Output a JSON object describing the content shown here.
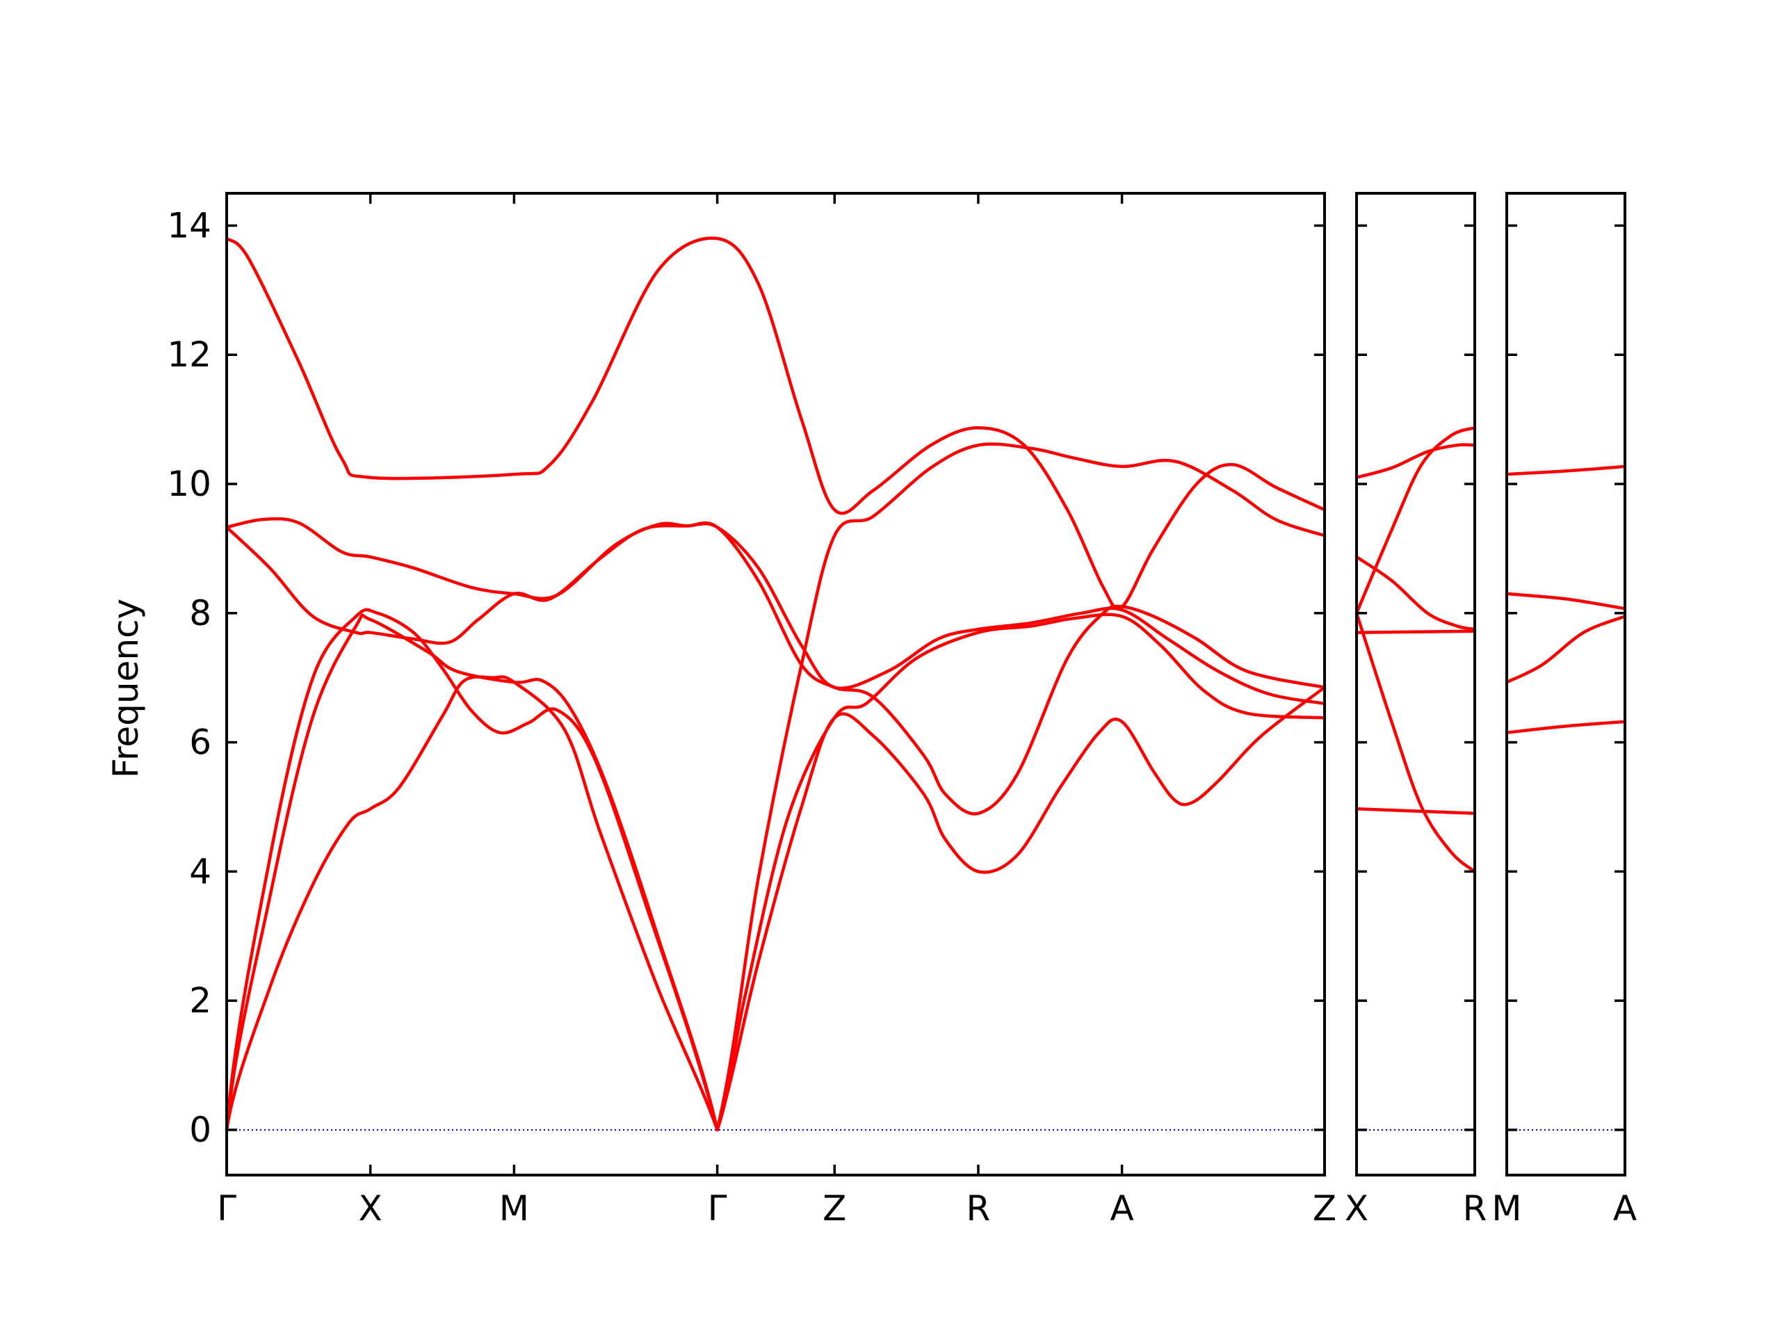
{
  "chart_data": {
    "type": "line",
    "title": "",
    "xlabel": "",
    "ylabel": "Frequency",
    "ylim": [
      -0.7,
      14.5
    ],
    "yticks": [
      0,
      2,
      4,
      6,
      8,
      10,
      12,
      14
    ],
    "grid": false,
    "legend": "none",
    "colors": {
      "bands": "#ff0000",
      "zero_line": "#0000ff",
      "frame": "#000000"
    },
    "segments": [
      {
        "x_labels": [
          "Γ",
          "X",
          "M",
          "Γ",
          "Z",
          "R",
          "A",
          "Z"
        ],
        "x_positions": [
          0,
          1,
          2,
          3.414,
          4.23,
          5.23,
          6.23,
          7.64
        ],
        "bands": [
          [
            [
              0,
              0
            ],
            [
              0.3,
              2.2
            ],
            [
              0.6,
              3.8
            ],
            [
              0.85,
              4.75
            ],
            [
              1,
              4.97
            ],
            [
              1.2,
              5.3
            ],
            [
              1.5,
              6.4
            ],
            [
              1.65,
              6.95
            ],
            [
              1.85,
              7.0
            ],
            [
              2,
              6.93
            ],
            [
              2.35,
              6.2
            ],
            [
              2.6,
              4.6
            ],
            [
              3.0,
              2.2
            ],
            [
              3.414,
              0
            ],
            [
              3.7,
              2.6
            ],
            [
              4.0,
              5.0
            ],
            [
              4.23,
              6.38
            ],
            [
              4.5,
              6.1
            ],
            [
              4.85,
              5.2
            ],
            [
              5.0,
              4.5
            ],
            [
              5.23,
              4.0
            ],
            [
              5.5,
              4.25
            ],
            [
              5.8,
              5.3
            ],
            [
              6.07,
              6.15
            ],
            [
              6.23,
              6.32
            ],
            [
              6.45,
              5.55
            ],
            [
              6.6,
              5.1
            ],
            [
              6.72,
              5.07
            ],
            [
              6.9,
              5.4
            ],
            [
              7.2,
              6.1
            ],
            [
              7.64,
              6.85
            ]
          ],
          [
            [
              0,
              0
            ],
            [
              0.3,
              3.6
            ],
            [
              0.6,
              6.4
            ],
            [
              0.9,
              7.8
            ],
            [
              1,
              7.9
            ],
            [
              1.4,
              7.4
            ],
            [
              1.6,
              7.1
            ],
            [
              2,
              6.93
            ],
            [
              2.2,
              6.95
            ],
            [
              2.4,
              6.5
            ],
            [
              2.65,
              5.3
            ],
            [
              3.0,
              3.0
            ],
            [
              3.414,
              0
            ],
            [
              3.6,
              2.0
            ],
            [
              3.9,
              4.8
            ],
            [
              4.23,
              6.38
            ],
            [
              4.45,
              6.6
            ],
            [
              4.8,
              7.3
            ],
            [
              5.23,
              7.7
            ],
            [
              5.6,
              7.8
            ],
            [
              5.9,
              7.92
            ],
            [
              6.23,
              7.95
            ],
            [
              6.5,
              7.5
            ],
            [
              6.8,
              6.8
            ],
            [
              7.1,
              6.45
            ],
            [
              7.64,
              6.38
            ]
          ],
          [
            [
              0,
              0
            ],
            [
              0.3,
              4.2
            ],
            [
              0.6,
              7.0
            ],
            [
              0.9,
              7.95
            ],
            [
              1.05,
              8.0
            ],
            [
              1.3,
              7.7
            ],
            [
              1.5,
              7.15
            ],
            [
              1.7,
              6.5
            ],
            [
              1.9,
              6.15
            ],
            [
              2.1,
              6.3
            ],
            [
              2.3,
              6.5
            ],
            [
              2.55,
              5.8
            ],
            [
              2.9,
              3.6
            ],
            [
              3.414,
              0
            ],
            [
              3.7,
              3.9
            ],
            [
              4.0,
              7.2
            ],
            [
              4.23,
              9.2
            ],
            [
              4.5,
              9.5
            ],
            [
              4.9,
              10.25
            ],
            [
              5.23,
              10.6
            ],
            [
              5.6,
              10.55
            ],
            [
              5.9,
              10.4
            ],
            [
              6.23,
              10.27
            ],
            [
              6.6,
              10.35
            ],
            [
              7.0,
              9.9
            ],
            [
              7.3,
              9.45
            ],
            [
              7.64,
              9.2
            ]
          ],
          [
            [
              0,
              9.33
            ],
            [
              0.3,
              8.7
            ],
            [
              0.6,
              7.95
            ],
            [
              0.9,
              7.7
            ],
            [
              1,
              7.7
            ],
            [
              1.3,
              7.6
            ],
            [
              1.55,
              7.55
            ],
            [
              1.75,
              7.9
            ],
            [
              2,
              8.3
            ],
            [
              2.25,
              8.22
            ],
            [
              2.6,
              8.85
            ],
            [
              2.9,
              9.3
            ],
            [
              3.2,
              9.35
            ],
            [
              3.414,
              9.33
            ],
            [
              3.7,
              8.7
            ],
            [
              4.0,
              7.5
            ],
            [
              4.23,
              6.85
            ],
            [
              4.6,
              7.1
            ],
            [
              4.95,
              7.6
            ],
            [
              5.23,
              7.75
            ],
            [
              5.6,
              7.85
            ],
            [
              5.95,
              8.0
            ],
            [
              6.23,
              8.05
            ],
            [
              6.55,
              7.6
            ],
            [
              6.9,
              7.1
            ],
            [
              7.25,
              6.75
            ],
            [
              7.64,
              6.6
            ]
          ],
          [
            [
              0,
              9.33
            ],
            [
              0.25,
              9.45
            ],
            [
              0.5,
              9.4
            ],
            [
              0.8,
              8.95
            ],
            [
              1,
              8.87
            ],
            [
              1.3,
              8.7
            ],
            [
              1.7,
              8.4
            ],
            [
              2,
              8.3
            ],
            [
              2.3,
              8.28
            ],
            [
              2.7,
              9.05
            ],
            [
              3.0,
              9.37
            ],
            [
              3.2,
              9.35
            ],
            [
              3.414,
              9.33
            ],
            [
              3.7,
              8.5
            ],
            [
              4.0,
              7.2
            ],
            [
              4.23,
              6.85
            ],
            [
              4.5,
              6.7
            ],
            [
              4.85,
              5.8
            ],
            [
              5.0,
              5.2
            ],
            [
              5.23,
              4.9
            ],
            [
              5.5,
              5.5
            ],
            [
              5.85,
              7.3
            ],
            [
              6.1,
              8.0
            ],
            [
              6.23,
              8.1
            ],
            [
              6.45,
              7.95
            ],
            [
              6.75,
              7.6
            ],
            [
              7.1,
              7.1
            ],
            [
              7.64,
              6.85
            ]
          ],
          [
            [
              0,
              13.8
            ],
            [
              0.15,
              13.5
            ],
            [
              0.5,
              11.9
            ],
            [
              0.8,
              10.4
            ],
            [
              1,
              10.1
            ],
            [
              2,
              10.15
            ],
            [
              2.25,
              10.3
            ],
            [
              2.55,
              11.3
            ],
            [
              3.0,
              13.3
            ],
            [
              3.414,
              13.8
            ],
            [
              3.7,
              13.1
            ],
            [
              4.0,
              11.0
            ],
            [
              4.23,
              9.6
            ],
            [
              4.5,
              9.9
            ],
            [
              4.9,
              10.6
            ],
            [
              5.23,
              10.87
            ],
            [
              5.55,
              10.6
            ],
            [
              5.85,
              9.6
            ],
            [
              6.1,
              8.4
            ],
            [
              6.23,
              8.1
            ],
            [
              6.45,
              9.0
            ],
            [
              6.75,
              10.0
            ],
            [
              7.0,
              10.3
            ],
            [
              7.3,
              9.95
            ],
            [
              7.64,
              9.6
            ]
          ]
        ]
      },
      {
        "x_labels": [
          "X",
          "R"
        ],
        "x_positions": [
          0,
          1
        ],
        "bands": [
          [
            [
              0,
              4.97
            ],
            [
              1,
              4.9
            ]
          ],
          [
            [
              0,
              8.0
            ],
            [
              0.3,
              6.3
            ],
            [
              0.55,
              5.0
            ],
            [
              0.8,
              4.3
            ],
            [
              1,
              4.0
            ]
          ],
          [
            [
              0,
              7.7
            ],
            [
              1,
              7.72
            ]
          ],
          [
            [
              0,
              8.87
            ],
            [
              0.3,
              8.5
            ],
            [
              0.6,
              8.0
            ],
            [
              0.85,
              7.8
            ],
            [
              1,
              7.75
            ]
          ],
          [
            [
              0,
              8.0
            ],
            [
              0.3,
              9.3
            ],
            [
              0.55,
              10.3
            ],
            [
              0.8,
              10.75
            ],
            [
              1,
              10.87
            ]
          ],
          [
            [
              0,
              10.1
            ],
            [
              0.3,
              10.25
            ],
            [
              0.6,
              10.5
            ],
            [
              0.85,
              10.6
            ],
            [
              1,
              10.6
            ]
          ]
        ]
      },
      {
        "x_labels": [
          "M",
          "A"
        ],
        "x_positions": [
          0,
          1
        ],
        "bands": [
          [
            [
              0,
              6.15
            ],
            [
              0.5,
              6.25
            ],
            [
              1,
              6.32
            ]
          ],
          [
            [
              0,
              6.93
            ],
            [
              0.3,
              7.2
            ],
            [
              0.65,
              7.7
            ],
            [
              1,
              7.95
            ]
          ],
          [
            [
              0,
              8.3
            ],
            [
              0.5,
              8.22
            ],
            [
              1,
              8.07
            ]
          ],
          [
            [
              0,
              10.15
            ],
            [
              0.5,
              10.2
            ],
            [
              1,
              10.27
            ]
          ]
        ]
      }
    ]
  }
}
